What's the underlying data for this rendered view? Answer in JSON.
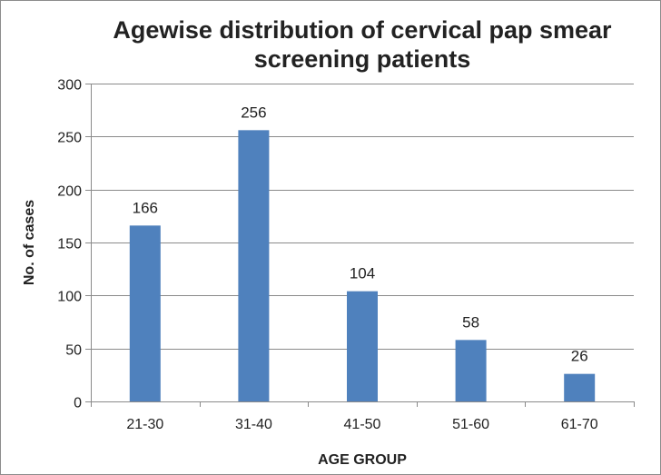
{
  "chart_data": {
    "type": "bar",
    "title_lines": [
      "Agewise distribution of cervical pap smear",
      "screening patients"
    ],
    "xlabel": "AGE GROUP",
    "ylabel": "No. of cases",
    "categories": [
      "21-30",
      "31-40",
      "41-50",
      "51-60",
      "61-70"
    ],
    "values": [
      166,
      256,
      104,
      58,
      26
    ],
    "data_labels": [
      "166",
      "256",
      "104",
      "58",
      "26"
    ],
    "ylim": [
      0,
      300
    ],
    "yticks": [
      0,
      50,
      100,
      150,
      200,
      250,
      300
    ],
    "grid": true,
    "legend": "none",
    "bar_color": "#4f81bd"
  }
}
